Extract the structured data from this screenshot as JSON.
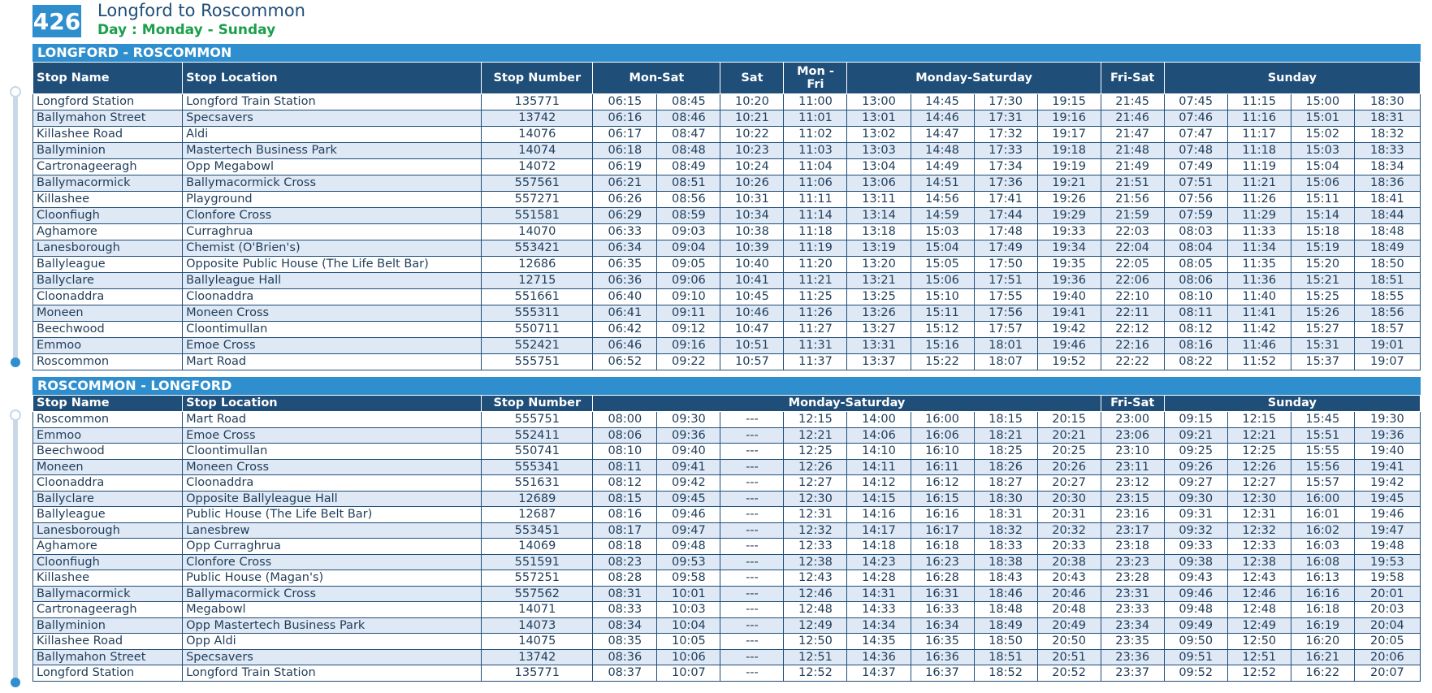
{
  "header": {
    "route_number": "426",
    "title": "Longford to Roscommon",
    "days": "Day : Monday - Sunday"
  },
  "outbound": {
    "title": "LONGFORD - ROSCOMMON",
    "headers": {
      "stop_name": "Stop Name",
      "stop_location": "Stop Location",
      "stop_number": "Stop Number",
      "groups": [
        "Mon-Sat",
        "Sat",
        "Mon - Fri",
        "Monday-Saturday",
        "Fri-Sat",
        "Sunday"
      ]
    },
    "rows": [
      [
        "Longford Station",
        "Longford Train Station",
        "135771",
        "06:15",
        "08:45",
        "10:20",
        "11:00",
        "13:00",
        "14:45",
        "17:30",
        "19:15",
        "21:45",
        "07:45",
        "11:15",
        "15:00",
        "18:30"
      ],
      [
        "Ballymahon Street",
        "Specsavers",
        "13742",
        "06:16",
        "08:46",
        "10:21",
        "11:01",
        "13:01",
        "14:46",
        "17:31",
        "19:16",
        "21:46",
        "07:46",
        "11:16",
        "15:01",
        "18:31"
      ],
      [
        "Killashee Road",
        "Aldi",
        "14076",
        "06:17",
        "08:47",
        "10:22",
        "11:02",
        "13:02",
        "14:47",
        "17:32",
        "19:17",
        "21:47",
        "07:47",
        "11:17",
        "15:02",
        "18:32"
      ],
      [
        "Ballyminion",
        "Mastertech Business Park",
        "14074",
        "06:18",
        "08:48",
        "10:23",
        "11:03",
        "13:03",
        "14:48",
        "17:33",
        "19:18",
        "21:48",
        "07:48",
        "11:18",
        "15:03",
        "18:33"
      ],
      [
        "Cartronageeragh",
        "Opp Megabowl",
        "14072",
        "06:19",
        "08:49",
        "10:24",
        "11:04",
        "13:04",
        "14:49",
        "17:34",
        "19:19",
        "21:49",
        "07:49",
        "11:19",
        "15:04",
        "18:34"
      ],
      [
        "Ballymacormick",
        "Ballymacormick Cross",
        "557561",
        "06:21",
        "08:51",
        "10:26",
        "11:06",
        "13:06",
        "14:51",
        "17:36",
        "19:21",
        "21:51",
        "07:51",
        "11:21",
        "15:06",
        "18:36"
      ],
      [
        "Killashee",
        "Playground",
        "557271",
        "06:26",
        "08:56",
        "10:31",
        "11:11",
        "13:11",
        "14:56",
        "17:41",
        "19:26",
        "21:56",
        "07:56",
        "11:26",
        "15:11",
        "18:41"
      ],
      [
        "Cloonfiugh",
        "Clonfore Cross",
        "551581",
        "06:29",
        "08:59",
        "10:34",
        "11:14",
        "13:14",
        "14:59",
        "17:44",
        "19:29",
        "21:59",
        "07:59",
        "11:29",
        "15:14",
        "18:44"
      ],
      [
        "Aghamore",
        "Curraghrua",
        "14070",
        "06:33",
        "09:03",
        "10:38",
        "11:18",
        "13:18",
        "15:03",
        "17:48",
        "19:33",
        "22:03",
        "08:03",
        "11:33",
        "15:18",
        "18:48"
      ],
      [
        "Lanesborough",
        "Chemist (O'Brien's)",
        "553421",
        "06:34",
        "09:04",
        "10:39",
        "11:19",
        "13:19",
        "15:04",
        "17:49",
        "19:34",
        "22:04",
        "08:04",
        "11:34",
        "15:19",
        "18:49"
      ],
      [
        "Ballyleague",
        "Opposite Public House (The Life Belt Bar)",
        "12686",
        "06:35",
        "09:05",
        "10:40",
        "11:20",
        "13:20",
        "15:05",
        "17:50",
        "19:35",
        "22:05",
        "08:05",
        "11:35",
        "15:20",
        "18:50"
      ],
      [
        "Ballyclare",
        "Ballyleague Hall",
        "12715",
        "06:36",
        "09:06",
        "10:41",
        "11:21",
        "13:21",
        "15:06",
        "17:51",
        "19:36",
        "22:06",
        "08:06",
        "11:36",
        "15:21",
        "18:51"
      ],
      [
        "Cloonaddra",
        "Cloonaddra",
        "551661",
        "06:40",
        "09:10",
        "10:45",
        "11:25",
        "13:25",
        "15:10",
        "17:55",
        "19:40",
        "22:10",
        "08:10",
        "11:40",
        "15:25",
        "18:55"
      ],
      [
        "Moneen",
        "Moneen Cross",
        "555311",
        "06:41",
        "09:11",
        "10:46",
        "11:26",
        "13:26",
        "15:11",
        "17:56",
        "19:41",
        "22:11",
        "08:11",
        "11:41",
        "15:26",
        "18:56"
      ],
      [
        "Beechwood",
        "Cloontimullan",
        "550711",
        "06:42",
        "09:12",
        "10:47",
        "11:27",
        "13:27",
        "15:12",
        "17:57",
        "19:42",
        "22:12",
        "08:12",
        "11:42",
        "15:27",
        "18:57"
      ],
      [
        "Emmoo",
        "Emoe Cross",
        "552421",
        "06:46",
        "09:16",
        "10:51",
        "11:31",
        "13:31",
        "15:16",
        "18:01",
        "19:46",
        "22:16",
        "08:16",
        "11:46",
        "15:31",
        "19:01"
      ],
      [
        "Roscommon",
        "Mart Road",
        "555751",
        "06:52",
        "09:22",
        "10:57",
        "11:37",
        "13:37",
        "15:22",
        "18:07",
        "19:52",
        "22:22",
        "08:22",
        "11:52",
        "15:37",
        "19:07"
      ]
    ]
  },
  "inbound": {
    "title": "ROSCOMMON - LONGFORD",
    "headers": {
      "stop_name": "Stop Name",
      "stop_location": "Stop Location",
      "stop_number": "Stop Number",
      "groups": [
        "Monday-Saturday",
        "Fri-Sat",
        "Sunday"
      ]
    },
    "rows": [
      [
        "Roscommon",
        "Mart Road",
        "555751",
        "08:00",
        "09:30",
        "---",
        "12:15",
        "14:00",
        "16:00",
        "18:15",
        "20:15",
        "23:00",
        "09:15",
        "12:15",
        "15:45",
        "19:30"
      ],
      [
        "Emmoo",
        "Emoe Cross",
        "552411",
        "08:06",
        "09:36",
        "---",
        "12:21",
        "14:06",
        "16:06",
        "18:21",
        "20:21",
        "23:06",
        "09:21",
        "12:21",
        "15:51",
        "19:36"
      ],
      [
        "Beechwood",
        "Cloontimullan",
        "550741",
        "08:10",
        "09:40",
        "---",
        "12:25",
        "14:10",
        "16:10",
        "18:25",
        "20:25",
        "23:10",
        "09:25",
        "12:25",
        "15:55",
        "19:40"
      ],
      [
        "Moneen",
        "Moneen Cross",
        "555341",
        "08:11",
        "09:41",
        "---",
        "12:26",
        "14:11",
        "16:11",
        "18:26",
        "20:26",
        "23:11",
        "09:26",
        "12:26",
        "15:56",
        "19:41"
      ],
      [
        "Cloonaddra",
        "Cloonaddra",
        "551631",
        "08:12",
        "09:42",
        "---",
        "12:27",
        "14:12",
        "16:12",
        "18:27",
        "20:27",
        "23:12",
        "09:27",
        "12:27",
        "15:57",
        "19:42"
      ],
      [
        "Ballyclare",
        "Opposite Ballyleague Hall",
        "12689",
        "08:15",
        "09:45",
        "---",
        "12:30",
        "14:15",
        "16:15",
        "18:30",
        "20:30",
        "23:15",
        "09:30",
        "12:30",
        "16:00",
        "19:45"
      ],
      [
        "Ballyleague",
        "Public House (The Life Belt Bar)",
        "12687",
        "08:16",
        "09:46",
        "---",
        "12:31",
        "14:16",
        "16:16",
        "18:31",
        "20:31",
        "23:16",
        "09:31",
        "12:31",
        "16:01",
        "19:46"
      ],
      [
        "Lanesborough",
        "Lanesbrew",
        "553451",
        "08:17",
        "09:47",
        "---",
        "12:32",
        "14:17",
        "16:17",
        "18:32",
        "20:32",
        "23:17",
        "09:32",
        "12:32",
        "16:02",
        "19:47"
      ],
      [
        "Aghamore",
        "Opp Curraghrua",
        "14069",
        "08:18",
        "09:48",
        "---",
        "12:33",
        "14:18",
        "16:18",
        "18:33",
        "20:33",
        "23:18",
        "09:33",
        "12:33",
        "16:03",
        "19:48"
      ],
      [
        "Cloonfiugh",
        "Clonfore Cross",
        "551591",
        "08:23",
        "09:53",
        "---",
        "12:38",
        "14:23",
        "16:23",
        "18:38",
        "20:38",
        "23:23",
        "09:38",
        "12:38",
        "16:08",
        "19:53"
      ],
      [
        "Killashee",
        "Public House (Magan's)",
        "557251",
        "08:28",
        "09:58",
        "---",
        "12:43",
        "14:28",
        "16:28",
        "18:43",
        "20:43",
        "23:28",
        "09:43",
        "12:43",
        "16:13",
        "19:58"
      ],
      [
        "Ballymacormick",
        "Ballymacormick Cross",
        "557562",
        "08:31",
        "10:01",
        "---",
        "12:46",
        "14:31",
        "16:31",
        "18:46",
        "20:46",
        "23:31",
        "09:46",
        "12:46",
        "16:16",
        "20:01"
      ],
      [
        "Cartronageeragh",
        "Megabowl",
        "14071",
        "08:33",
        "10:03",
        "---",
        "12:48",
        "14:33",
        "16:33",
        "18:48",
        "20:48",
        "23:33",
        "09:48",
        "12:48",
        "16:18",
        "20:03"
      ],
      [
        "Ballyminion",
        "Opp Mastertech Business Park",
        "14073",
        "08:34",
        "10:04",
        "---",
        "12:49",
        "14:34",
        "16:34",
        "18:49",
        "20:49",
        "23:34",
        "09:49",
        "12:49",
        "16:19",
        "20:04"
      ],
      [
        "Killashee Road",
        "Opp Aldi",
        "14075",
        "08:35",
        "10:05",
        "---",
        "12:50",
        "14:35",
        "16:35",
        "18:50",
        "20:50",
        "23:35",
        "09:50",
        "12:50",
        "16:20",
        "20:05"
      ],
      [
        "Ballymahon Street",
        "Specsavers",
        "13742",
        "08:36",
        "10:06",
        "---",
        "12:51",
        "14:36",
        "16:36",
        "18:51",
        "20:51",
        "23:36",
        "09:51",
        "12:51",
        "16:21",
        "20:06"
      ],
      [
        "Longford Station",
        "Longford Train Station",
        "135771",
        "08:37",
        "10:07",
        "---",
        "12:52",
        "14:37",
        "16:37",
        "18:52",
        "20:52",
        "23:37",
        "09:52",
        "12:52",
        "16:22",
        "20:07"
      ]
    ]
  }
}
